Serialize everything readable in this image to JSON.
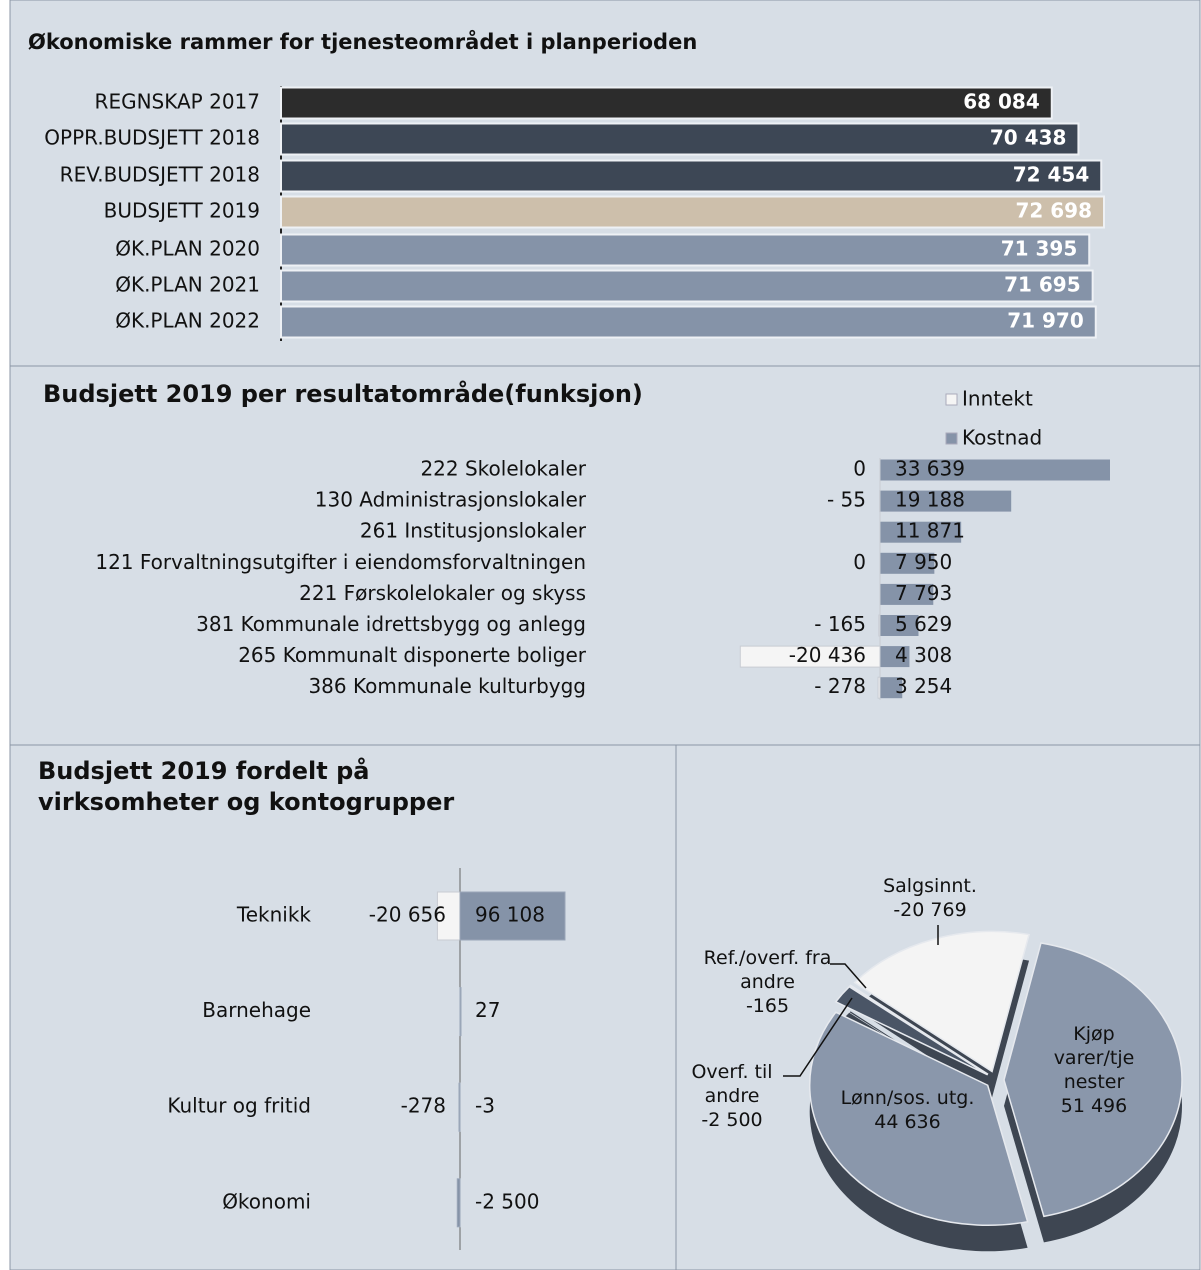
{
  "chart_data": [
    {
      "type": "hbar",
      "title": "Økonomiske rammer for tjenesteområdet i planperioden",
      "categories": [
        "REGNSKAP 2017",
        "OPPR.BUDSJETT 2018",
        "REV.BUDSJETT 2018",
        "BUDSJETT 2019",
        "ØK.PLAN 2020",
        "ØK.PLAN 2021",
        "ØK.PLAN 2022"
      ],
      "values": [
        68084,
        70438,
        72454,
        72698,
        71395,
        71695,
        71970
      ],
      "value_labels": [
        "68 084",
        "70 438",
        "72 454",
        "72 698",
        "71 395",
        "71 695",
        "71 970"
      ],
      "colors": [
        "#2c2c2c",
        "#3d4755",
        "#3d4755",
        "#cdbfab",
        "#8593a8",
        "#8593a8",
        "#8593a8"
      ]
    },
    {
      "type": "diverging",
      "title": "Budsjett 2019 per resultatområde(funksjon)",
      "legend": "top-right",
      "categories": [
        "222 Skolelokaler",
        "130 Administrasjonslokaler",
        "261 Institusjonslokaler",
        "121 Forvaltningsutgifter i eiendomsforvaltningen",
        "221 Førskolelokaler og skyss",
        "381 Kommunale idrettsbygg og anlegg",
        "265 Kommunalt disponerte boliger",
        "386 Kommunale kulturbygg"
      ],
      "series": [
        {
          "name": "Inntekt",
          "color": "#f5f5f5",
          "values": [
            0,
            -55,
            null,
            0,
            null,
            -165,
            -20436,
            -278
          ],
          "value_labels": [
            "0",
            "- 55",
            null,
            "0",
            null,
            "- 165",
            "-20 436",
            "- 278"
          ]
        },
        {
          "name": "Kostnad",
          "color": "#8593a8",
          "values": [
            33639,
            19188,
            11871,
            7950,
            7793,
            5629,
            4308,
            3254
          ],
          "value_labels": [
            "33 639",
            "19 188",
            "11 871",
            "7 950",
            "7 793",
            "5 629",
            "4 308",
            "3 254"
          ]
        }
      ]
    },
    {
      "type": "diverging-wide",
      "title": "Budsjett 2019 fordelt på virksomheter og kontogrupper",
      "categories": [
        "Teknikk",
        "Barnehage",
        "Kultur og fritid",
        "Økonomi"
      ],
      "series": [
        {
          "color": "#f5f5f5",
          "values": [
            -20656,
            null,
            -278,
            null
          ],
          "value_labels": [
            "-20 656",
            null,
            "-278",
            null
          ]
        },
        {
          "color": "#8593a8",
          "values": [
            96108,
            27,
            -3,
            -2500
          ],
          "value_labels": [
            "96 108",
            "27",
            "-3",
            "-2 500"
          ]
        }
      ]
    },
    {
      "type": "pie",
      "labels": [
        "Kjøp varer/tjenester",
        "Lønn/sos. utg.",
        "Overf. til andre",
        "Ref./overf. fra andre",
        "Salgsinnt."
      ],
      "values": [
        51496,
        44636,
        -2500,
        -165,
        -20769
      ],
      "value_labels": [
        "51 496",
        "44 636",
        "-2 500",
        "-165",
        "-20 769"
      ],
      "colors": [
        "#8a97ab",
        "#8a97ab",
        "#4a5566",
        "#8a97ab",
        "#f4f4f4"
      ]
    }
  ]
}
